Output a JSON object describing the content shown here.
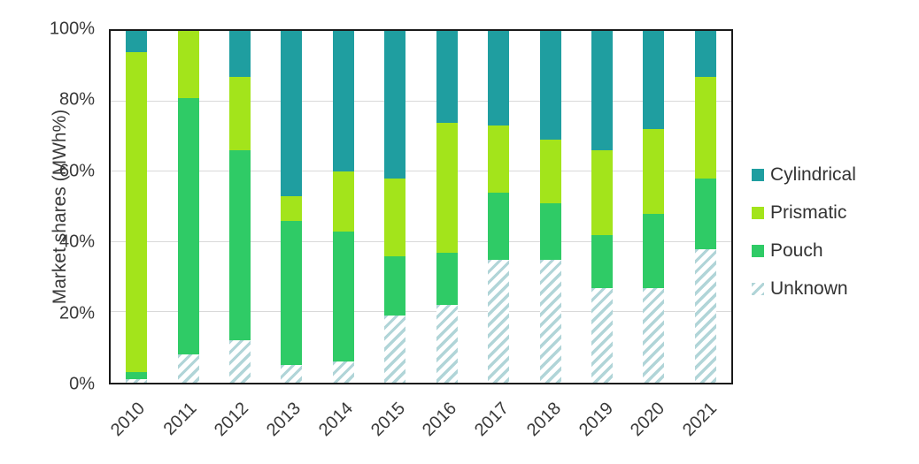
{
  "chart": {
    "y_tick_labels": [
      "0%",
      "20%",
      "40%",
      "60%",
      "80%",
      "100%"
    ]
  },
  "chart_data": {
    "type": "bar",
    "stacked": true,
    "unit": "percent",
    "title": "",
    "xlabel": "",
    "ylabel": "Market shares (MWh%)",
    "ylim": [
      0,
      100
    ],
    "y_tick_step": 20,
    "grid": "horizontal",
    "legend_position": "right",
    "legend_order_top_to_bottom": [
      "Cylindrical",
      "Prismatic",
      "Pouch",
      "Unknown"
    ],
    "categories": [
      "2010",
      "2011",
      "2012",
      "2013",
      "2014",
      "2015",
      "2016",
      "2017",
      "2018",
      "2019",
      "2020",
      "2021"
    ],
    "series": [
      {
        "name": "Unknown",
        "color": "#b1d5d8",
        "pattern": "diagonal-hatch",
        "values": [
          1,
          8,
          12,
          5,
          6,
          19,
          22,
          35,
          35,
          27,
          27,
          38
        ]
      },
      {
        "name": "Pouch",
        "color": "#2fcb66",
        "pattern": "solid",
        "values": [
          2,
          73,
          54,
          41,
          37,
          17,
          15,
          19,
          16,
          15,
          21,
          20
        ]
      },
      {
        "name": "Prismatic",
        "color": "#a3e41b",
        "pattern": "solid",
        "values": [
          91,
          19,
          21,
          7,
          17,
          22,
          37,
          19,
          18,
          24,
          24,
          29
        ]
      },
      {
        "name": "Cylindrical",
        "color": "#1f9ea0",
        "pattern": "solid",
        "values": [
          6,
          0,
          13,
          47,
          40,
          42,
          26,
          27,
          31,
          34,
          28,
          13
        ]
      }
    ]
  }
}
